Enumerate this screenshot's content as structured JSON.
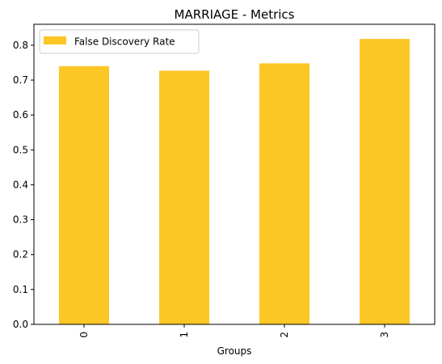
{
  "chart_data": {
    "type": "bar",
    "title": "MARRIAGE - Metrics",
    "xlabel": "Groups",
    "ylabel": "",
    "categories": [
      "0",
      "1",
      "2",
      "3"
    ],
    "series": [
      {
        "name": "False Discovery Rate",
        "values": [
          0.74,
          0.727,
          0.748,
          0.818
        ]
      }
    ],
    "ylim": [
      0,
      0.86
    ],
    "yticks": [
      "0.0",
      "0.1",
      "0.2",
      "0.3",
      "0.4",
      "0.5",
      "0.6",
      "0.7",
      "0.8"
    ],
    "grid": false,
    "legend_position": "upper left",
    "bar_color": "#fcc625"
  }
}
